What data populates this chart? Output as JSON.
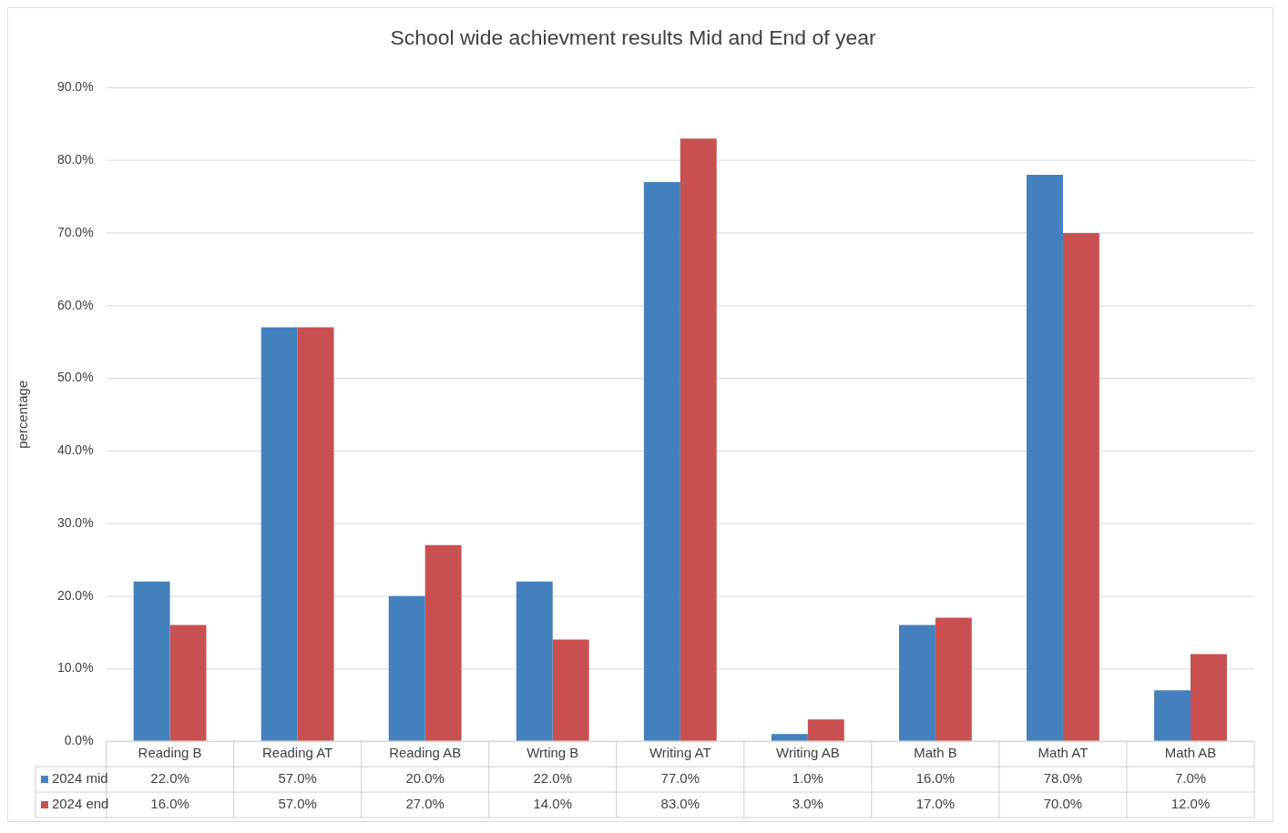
{
  "chart_data": {
    "type": "bar",
    "title": "School wide achievment results Mid and End of year",
    "ylabel": "percentage",
    "categories": [
      "Reading B",
      "Reading AT",
      "Reading AB",
      "Wrting B",
      "Writing AT",
      "Writing AB",
      "Math B",
      "Math AT",
      "Math AB"
    ],
    "series": [
      {
        "name": "2024 mid",
        "color": "#4480bd",
        "values": [
          22,
          57,
          20,
          22,
          77,
          1,
          16,
          78,
          7
        ],
        "value_labels": [
          "22.0%",
          "57.0%",
          "20.0%",
          "22.0%",
          "77.0%",
          "1.0%",
          "16.0%",
          "78.0%",
          "7.0%"
        ]
      },
      {
        "name": "2024 end",
        "color": "#c85050",
        "values": [
          16,
          57,
          27,
          14,
          83,
          3,
          17,
          70,
          12
        ],
        "value_labels": [
          "16.0%",
          "57.0%",
          "27.0%",
          "14.0%",
          "83.0%",
          "3.0%",
          "17.0%",
          "70.0%",
          "12.0%"
        ]
      }
    ],
    "ylim": [
      0,
      90
    ],
    "yticks": [
      {
        "value": 0,
        "label": "0.0%"
      },
      {
        "value": 10,
        "label": "10.0%"
      },
      {
        "value": 20,
        "label": "20.0%"
      },
      {
        "value": 30,
        "label": "30.0%"
      },
      {
        "value": 40,
        "label": "40.0%"
      },
      {
        "value": 50,
        "label": "50.0%"
      },
      {
        "value": 60,
        "label": "60.0%"
      },
      {
        "value": 70,
        "label": "70.0%"
      },
      {
        "value": 80,
        "label": "80.0%"
      },
      {
        "value": 90,
        "label": "90.0%"
      }
    ],
    "grid": "y",
    "legend": "bottom"
  }
}
